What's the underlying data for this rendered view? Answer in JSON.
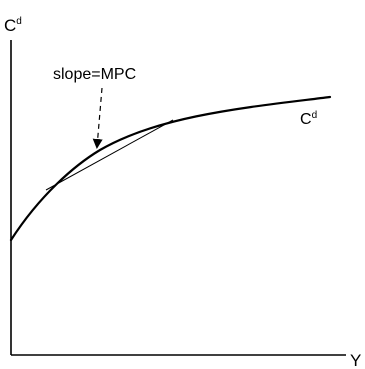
{
  "chart_data": {
    "type": "line",
    "title": "",
    "x_axis": {
      "label": "Y",
      "ticks": "none"
    },
    "y_axis": {
      "label_base": "C",
      "label_superscript": "d",
      "ticks": "none"
    },
    "grid": false,
    "legend": "none",
    "series": [
      {
        "name_base": "C",
        "name_superscript": "d",
        "shape": "concave, increasing, positive intercept",
        "color": "#000000"
      }
    ],
    "tangent_line": {
      "annotation": "slope=MPC",
      "arrow_style": "dashed"
    }
  }
}
